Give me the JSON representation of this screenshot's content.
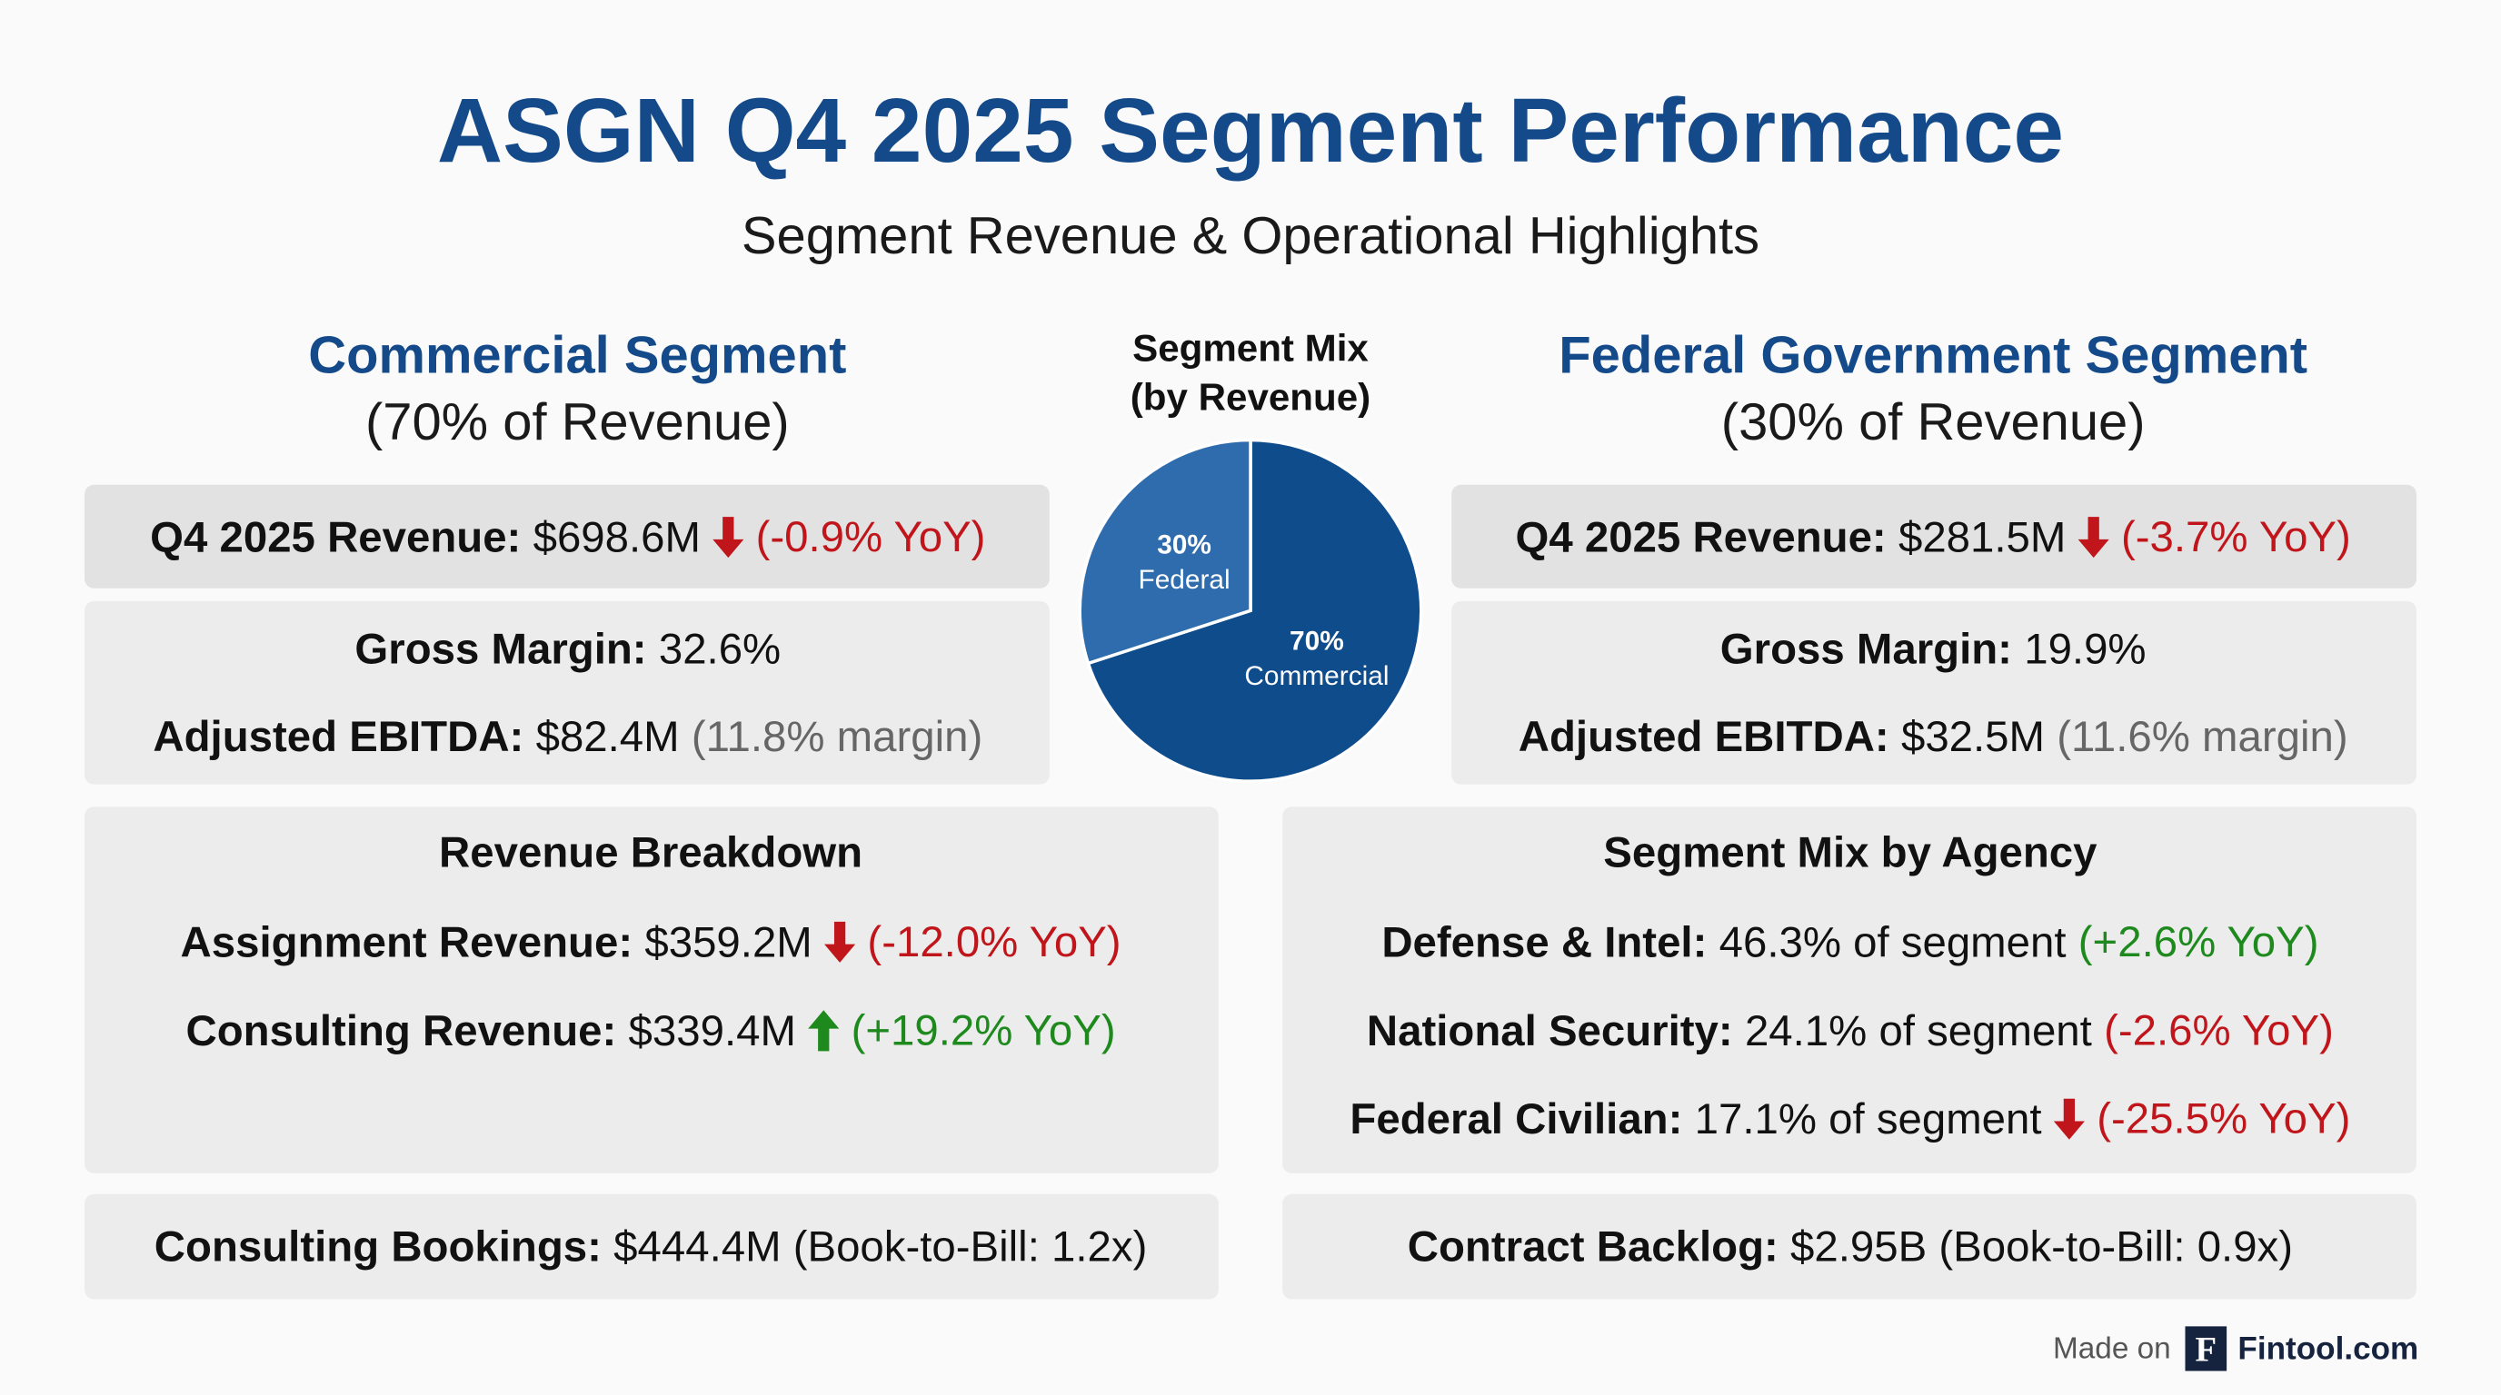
{
  "title": "ASGN Q4 2025 Segment Performance",
  "subtitle": "Segment Revenue & Operational Highlights",
  "commercial": {
    "heading": "Commercial Segment",
    "share": "(70% of Revenue)",
    "revenue": {
      "label": "Q4 2025 Revenue:",
      "value": "$698.6M",
      "arrow": "down",
      "tone": "negative",
      "change": "(-0.9% YoY)"
    },
    "metrics": [
      {
        "label": "Gross Margin:",
        "value": "32.6%"
      },
      {
        "label": "Adjusted EBITDA:",
        "value": "$82.4M",
        "note": "(11.8% margin)"
      }
    ],
    "detail": {
      "heading": "Revenue Breakdown",
      "lines": [
        {
          "label": "Assignment Revenue:",
          "value": "$359.2M",
          "arrow": "down",
          "tone": "negative",
          "change": "(-12.0% YoY)"
        },
        {
          "label": "Consulting Revenue:",
          "value": "$339.4M",
          "arrow": "up",
          "tone": "positive",
          "change": "(+19.2% YoY)"
        }
      ]
    },
    "bookings": {
      "label": "Consulting Bookings:",
      "value": "$444.4M (Book-to-Bill: 1.2x)"
    }
  },
  "federal": {
    "heading": "Federal Government Segment",
    "share": "(30% of Revenue)",
    "revenue": {
      "label": "Q4 2025 Revenue:",
      "value": "$281.5M",
      "arrow": "down",
      "tone": "negative",
      "change": "(-3.7% YoY)"
    },
    "metrics": [
      {
        "label": "Gross Margin:",
        "value": "19.9%"
      },
      {
        "label": "Adjusted EBITDA:",
        "value": "$32.5M",
        "note": "(11.6% margin)"
      }
    ],
    "detail": {
      "heading": "Segment Mix by Agency",
      "lines": [
        {
          "label": "Defense & Intel:",
          "value": "46.3% of segment",
          "tone": "positive",
          "change": "(+2.6% YoY)"
        },
        {
          "label": "National Security:",
          "value": "24.1% of segment",
          "tone": "negative",
          "change": "(-2.6% YoY)"
        },
        {
          "label": "Federal Civilian:",
          "value": "17.1% of segment",
          "arrow": "down",
          "tone": "negative",
          "change": "(-25.5% YoY)"
        }
      ]
    },
    "bookings": {
      "label": "Contract Backlog:",
      "value": "$2.95B (Book-to-Bill: 0.9x)"
    }
  },
  "chart_data": {
    "type": "pie",
    "title": "Segment Mix",
    "subtitle": "(by Revenue)",
    "categories": [
      "Commercial",
      "Federal"
    ],
    "values": [
      70,
      30
    ],
    "value_labels": [
      "70%",
      "30%"
    ],
    "colors": [
      "#0f4c8c",
      "#2e6cad"
    ]
  },
  "footer": {
    "prefix": "Made on",
    "logo": "F",
    "brand": "Fintool.com"
  }
}
